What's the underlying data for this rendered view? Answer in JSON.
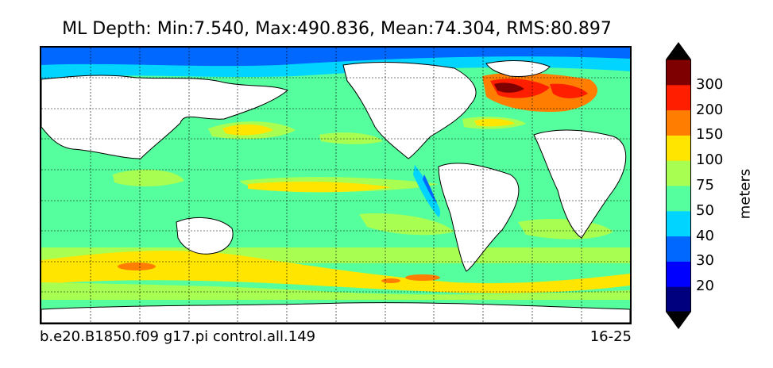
{
  "title": "ML Depth: Min:7.540, Max:490.836, Mean:74.304, RMS:80.897",
  "footer": {
    "case_name": "b.e20.B1850.f09 g17.pi control.all.149",
    "years": "16-25"
  },
  "colorbar": {
    "label": "meters",
    "ticks": [
      "20",
      "30",
      "40",
      "50",
      "75",
      "100",
      "150",
      "200",
      "300"
    ],
    "colors": [
      "#00007f",
      "#0000ff",
      "#0068ff",
      "#00d4ff",
      "#55ff9d",
      "#a8ff52",
      "#ffe500",
      "#ff7d00",
      "#ff1e00",
      "#7f0000"
    ],
    "under_color": "#000000",
    "over_color": "#000000"
  },
  "map": {
    "projection": "equirectangular",
    "ocean_default_color": "#55ff9d",
    "land_color": "#ffffff",
    "gridlines": "dashed"
  }
}
